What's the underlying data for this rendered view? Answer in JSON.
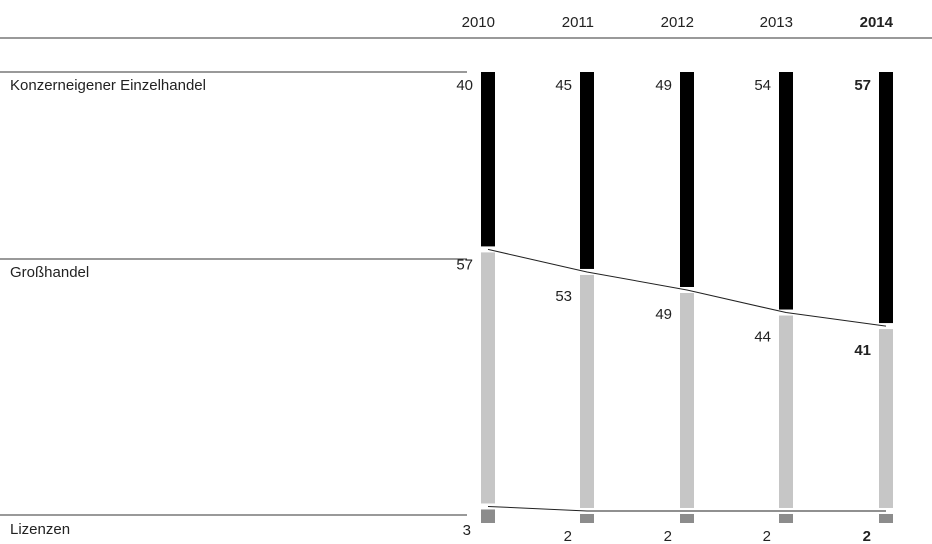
{
  "chart_data": {
    "type": "bar",
    "stacked": true,
    "orientation": "vertical",
    "categories": [
      "2010",
      "2011",
      "2012",
      "2013",
      "2014"
    ],
    "highlight_category": "2014",
    "ylim": [
      0,
      100
    ],
    "series": [
      {
        "name": "Konzerneigener Einzelhandel",
        "values": [
          40,
          45,
          49,
          54,
          57
        ],
        "color": "#000000"
      },
      {
        "name": "Großhandel",
        "values": [
          57,
          53,
          49,
          44,
          41
        ],
        "color": "#c6c6c6"
      },
      {
        "name": "Lizenzen",
        "values": [
          3,
          2,
          2,
          2,
          2
        ],
        "color": "#8c8c8c"
      }
    ],
    "grid": false,
    "legend": "left"
  }
}
